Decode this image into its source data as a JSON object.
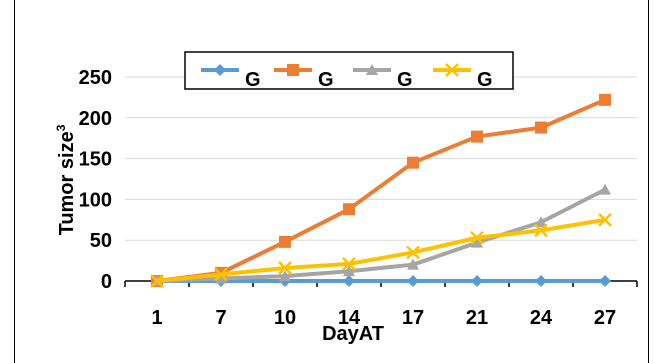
{
  "chart_data": {
    "type": "line",
    "categories": [
      "1",
      "7",
      "10",
      "14",
      "17",
      "21",
      "24",
      "27"
    ],
    "xlabel": "DayAT",
    "ylabel": "Tumor size",
    "ylabel_superscript": "3",
    "ylim": [
      0,
      250
    ],
    "yticks": [
      "0",
      "50",
      "100",
      "150",
      "200",
      "250"
    ],
    "grid": "horizontal",
    "legend_position": "top",
    "series": [
      {
        "name": "G",
        "color": "#5B9BD5",
        "marker": "diamond",
        "values": [
          0,
          0,
          0,
          0,
          0,
          0,
          0,
          0
        ]
      },
      {
        "name": "G",
        "color": "#ED7D31",
        "marker": "square",
        "values": [
          0,
          10,
          48,
          88,
          145,
          177,
          188,
          222
        ]
      },
      {
        "name": "G",
        "color": "#A5A5A5",
        "marker": "triangle",
        "values": [
          0,
          3,
          6,
          12,
          20,
          47,
          72,
          112
        ]
      },
      {
        "name": "G",
        "color": "#FFC000",
        "marker": "x",
        "values": [
          0,
          8,
          16,
          21,
          35,
          53,
          62,
          75
        ]
      }
    ]
  }
}
